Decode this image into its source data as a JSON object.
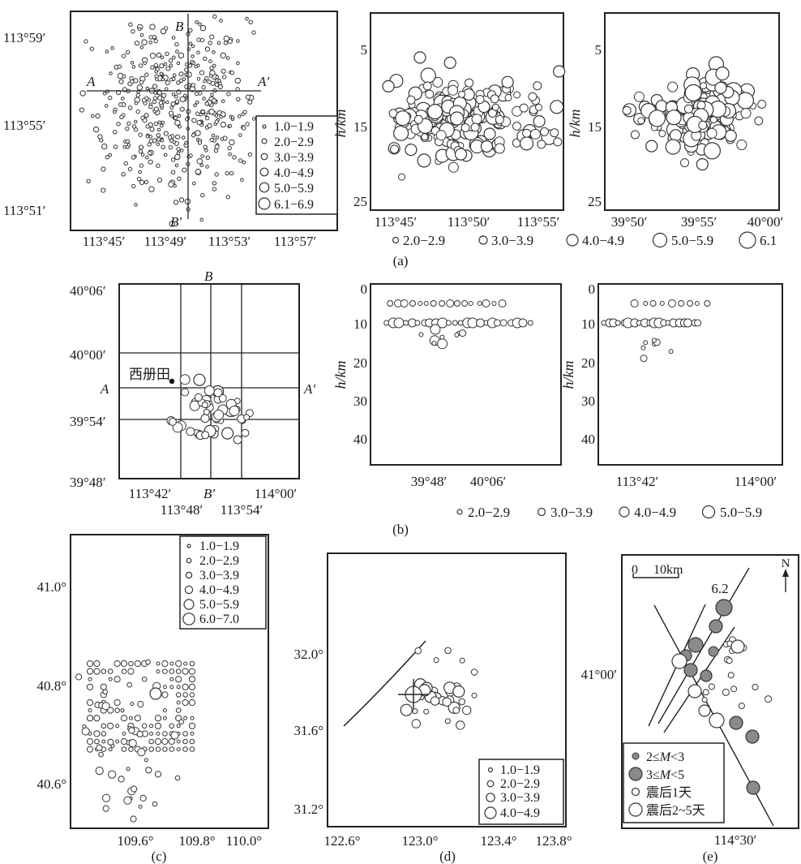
{
  "figure": {
    "panel_a": {
      "caption": "(a)",
      "map": {
        "y_ticks": [
          "113°59′",
          "113°55′",
          "113°51′"
        ],
        "x_ticks": [
          "113°45′",
          "113°49′",
          "113°53′",
          "113°57′"
        ],
        "section_labels": {
          "a_start": "A",
          "a_end": "A′",
          "b_start": "B",
          "b_end": "B′"
        },
        "legend": [
          "1.0−1.9",
          "2.0−2.9",
          "3.0−3.9",
          "4.0−4.9",
          "5.0−5.9",
          "6.1−6.9"
        ]
      },
      "depth_ew": {
        "ylabel": "h/km",
        "y_ticks": [
          "5",
          "15",
          "25"
        ],
        "x_ticks": [
          "113°45′",
          "113°50′",
          "113°55′"
        ]
      },
      "depth_ns": {
        "ylabel": "h/km",
        "y_ticks": [
          "5",
          "15",
          "25"
        ],
        "x_ticks": [
          "39°50′",
          "39°55′",
          "40°00′"
        ]
      },
      "bottom_legend": [
        "2.0−2.9",
        "3.0−3.9",
        "4.0−4.9",
        "5.0−5.9",
        "6.1"
      ]
    },
    "panel_b": {
      "caption": "(b)",
      "map": {
        "y_ticks": [
          "40°06′",
          "40°00′",
          "39°54′",
          "39°48′"
        ],
        "x_ticks_row1": [
          "113°42′",
          "114°00′"
        ],
        "x_ticks_row2": [
          "113°48′",
          "113°54′"
        ],
        "section_labels": {
          "a_start": "A",
          "a_end": "A′",
          "b_start": "B",
          "b_end": "B′"
        },
        "town": "西册田"
      },
      "depth_ew": {
        "ylabel": "h/km",
        "y_ticks": [
          "0",
          "10",
          "20",
          "30",
          "40"
        ],
        "x_ticks": [
          "39°48′",
          "40°06′"
        ]
      },
      "depth_ns": {
        "ylabel": "h/km",
        "y_ticks": [
          "0",
          "10",
          "20",
          "30",
          "40"
        ],
        "x_ticks": [
          "113°42′",
          "114°00′"
        ]
      },
      "legend": [
        "2.0−2.9",
        "3.0−3.9",
        "4.0−4.9",
        "5.0−5.9"
      ]
    },
    "panel_c": {
      "caption": "(c)",
      "y_ticks": [
        "41.0°",
        "40.8°",
        "40.6°"
      ],
      "x_ticks": [
        "109.6°",
        "109.8°",
        "110.0°"
      ],
      "legend": [
        "1.0−1.9",
        "2.0−2.9",
        "3.0−3.9",
        "4.0−4.9",
        "5.0−5.9",
        "6.0−7.0"
      ]
    },
    "panel_d": {
      "caption": "(d)",
      "y_ticks": [
        "32.0°",
        "31.6°",
        "31.2°"
      ],
      "x_ticks": [
        "122.6°",
        "123.0°",
        "123.4°",
        "123.8°"
      ],
      "legend": [
        "1.0−1.9",
        "2.0−2.9",
        "3.0−3.9",
        "4.0−4.9"
      ]
    },
    "panel_e": {
      "caption": "(e)",
      "scale_zero": "0",
      "scale_label": "10km",
      "north": "N",
      "mainshock": "6.2",
      "y_tick": "41°00′",
      "x_tick": "114°30′",
      "legend": {
        "row1_var": "M",
        "row1_pre": "2≤",
        "row1_post": "<3",
        "row2_var": "M",
        "row2_pre": "3≤",
        "row2_post": "<5",
        "row3": "震后1天",
        "row4": "震后2~5天"
      }
    }
  },
  "chart_data": [
    {
      "panel": "(a) map",
      "type": "scatter",
      "x_range": [
        "113°43′",
        "114°01′"
      ],
      "y_range": [
        "113°49′",
        "114°00′"
      ],
      "magnitude_classes": [
        "1.0−1.9",
        "2.0−2.9",
        "3.0−3.9",
        "4.0−4.9",
        "5.0−5.9",
        "6.1−6.9"
      ],
      "sections": [
        "A–A′ (E–W)",
        "B–B′ (N–S)"
      ],
      "approx_event_count": 430
    },
    {
      "panel": "(a) depth profile E–W",
      "type": "scatter",
      "x_range": [
        "113°43′",
        "113°57′"
      ],
      "ylabel": "h/km",
      "y_range_km": [
        1,
        26
      ],
      "y_inverted": true,
      "depth_band_km": [
        7,
        21
      ],
      "approx_event_count": 190
    },
    {
      "panel": "(a) depth profile N–S",
      "type": "scatter",
      "x_range": [
        "39°48′",
        "40°01′"
      ],
      "ylabel": "h/km",
      "y_range_km": [
        1,
        26
      ],
      "y_inverted": true,
      "depth_band_km": [
        8,
        21
      ],
      "approx_event_count": 150
    },
    {
      "panel": "(b) map",
      "type": "scatter",
      "x_range": [
        "113°38′",
        "114°04′"
      ],
      "y_range": [
        "39°46′",
        "40°07′"
      ],
      "grid_x": [
        "113°45′",
        "113°50′",
        "113°55′"
      ],
      "grid_y": [
        "40°00′",
        "39°57′",
        "39°54′"
      ],
      "approx_event_count": 55
    },
    {
      "panel": "(b) depth profile E–W",
      "type": "scatter",
      "ylabel": "h/km",
      "y_range_km": [
        0,
        42
      ],
      "y_inverted": true,
      "dominant_depths_km": [
        5,
        10
      ],
      "max_depth_km": 19
    },
    {
      "panel": "(b) depth profile N–S",
      "type": "scatter",
      "ylabel": "h/km",
      "y_range_km": [
        0,
        42
      ],
      "y_inverted": true,
      "dominant_depths_km": [
        5,
        10
      ],
      "max_depth_km": 19
    },
    {
      "panel": "(c)",
      "type": "scatter",
      "x_range": [
        109.42,
        110.06
      ],
      "y_range": [
        40.48,
        41.08
      ],
      "cluster_center": [
        109.66,
        40.76
      ],
      "magnitude_classes": [
        "1.0−1.9",
        "2.0−2.9",
        "3.0−3.9",
        "4.0−4.9",
        "5.0−5.9",
        "6.0−7.0"
      ]
    },
    {
      "panel": "(d)",
      "type": "scatter",
      "x_range": [
        122.48,
        123.92
      ],
      "y_range": [
        31.12,
        32.32
      ],
      "mainshock": [
        123.08,
        31.8
      ],
      "fault_trace": [
        [
          122.63,
          31.63
        ],
        [
          122.9,
          31.88
        ],
        [
          123.12,
          32.06
        ]
      ],
      "magnitude_classes": [
        "1.0−1.9",
        "2.0−2.9",
        "3.0−3.9",
        "4.0−4.9"
      ]
    },
    {
      "panel": "(e)",
      "type": "scatter",
      "mainshock_magnitude": 6.2,
      "classes": [
        "2≤M<3",
        "3≤M<5",
        "震后1天",
        "震后2~5天"
      ],
      "scale_km": 10
    }
  ]
}
